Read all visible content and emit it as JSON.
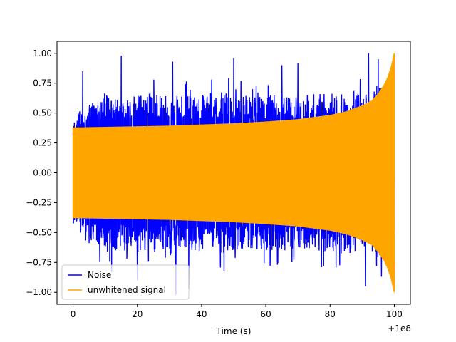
{
  "chart_data": {
    "type": "line",
    "title": "",
    "xlabel": "Time (s)",
    "ylabel": "",
    "x_offset_label": "+1e8",
    "xlim": [
      -5,
      105
    ],
    "ylim": [
      -1.1,
      1.1
    ],
    "x_ticks": [
      0,
      20,
      40,
      60,
      80,
      100
    ],
    "x_tick_labels": [
      "0",
      "20",
      "40",
      "60",
      "80",
      "100"
    ],
    "y_ticks": [
      -1.0,
      -0.75,
      -0.5,
      -0.25,
      0.0,
      0.25,
      0.5,
      0.75,
      1.0
    ],
    "y_tick_labels": [
      "−1.00",
      "−0.75",
      "−0.50",
      "−0.25",
      "0.00",
      "0.25",
      "0.50",
      "0.75",
      "1.00"
    ],
    "grid": false,
    "legend": {
      "placement": "lower-left"
    },
    "series": [
      {
        "name": "Noise",
        "color": "#0000ff",
        "x_range": [
          0,
          100
        ],
        "envelope": [
          [
            0,
            0.41
          ],
          [
            5,
            0.55
          ],
          [
            10,
            0.62
          ],
          [
            15,
            0.58
          ],
          [
            20,
            0.6
          ],
          [
            25,
            0.62
          ],
          [
            30,
            0.58
          ],
          [
            35,
            0.6
          ],
          [
            40,
            0.6
          ],
          [
            45,
            0.62
          ],
          [
            50,
            0.6
          ],
          [
            55,
            0.58
          ],
          [
            60,
            0.6
          ],
          [
            65,
            0.6
          ],
          [
            70,
            0.58
          ],
          [
            75,
            0.6
          ],
          [
            80,
            0.6
          ],
          [
            85,
            0.62
          ],
          [
            90,
            0.62
          ],
          [
            95,
            0.65
          ],
          [
            100,
            0.65
          ]
        ],
        "peaks": [
          [
            3,
            0.85
          ],
          [
            15,
            0.98
          ],
          [
            31,
            0.93
          ],
          [
            50,
            0.96
          ],
          [
            65,
            0.9
          ],
          [
            70,
            0.92
          ],
          [
            92,
            1.0
          ],
          [
            95,
            0.95
          ],
          [
            32,
            -1.02
          ],
          [
            36,
            -0.97
          ],
          [
            20,
            -0.9
          ],
          [
            12,
            -0.83
          ],
          [
            91,
            -0.95
          ],
          [
            47,
            -0.82
          ],
          [
            78,
            -0.78
          ],
          [
            96,
            -0.87
          ]
        ]
      },
      {
        "name": "unwhitened signal",
        "color": "#ffa500",
        "x_range": [
          0,
          100
        ],
        "envelope": [
          [
            0,
            0.375
          ],
          [
            10,
            0.38
          ],
          [
            20,
            0.385
          ],
          [
            30,
            0.39
          ],
          [
            40,
            0.4
          ],
          [
            50,
            0.41
          ],
          [
            60,
            0.425
          ],
          [
            70,
            0.445
          ],
          [
            80,
            0.48
          ],
          [
            85,
            0.51
          ],
          [
            90,
            0.56
          ],
          [
            93,
            0.6
          ],
          [
            95,
            0.66
          ],
          [
            97,
            0.74
          ],
          [
            98,
            0.8
          ],
          [
            99,
            0.88
          ],
          [
            100,
            1.0
          ]
        ]
      }
    ]
  }
}
